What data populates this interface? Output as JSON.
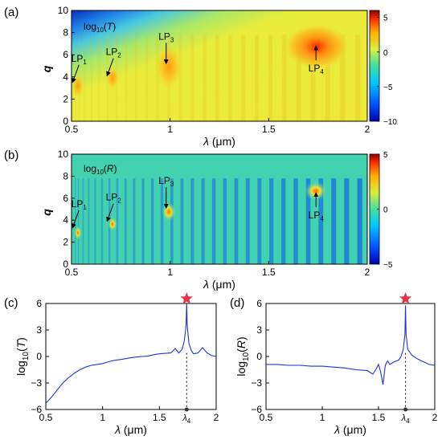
{
  "panels": {
    "a": {
      "tag": "(a)",
      "inset_label": "log",
      "inset_sub": "10",
      "inset_var": "T"
    },
    "b": {
      "tag": "(b)",
      "inset_label": "log",
      "inset_sub": "10",
      "inset_var": "R"
    },
    "c": {
      "tag": "(c)"
    },
    "d": {
      "tag": "(d)"
    }
  },
  "chart_data": [
    {
      "id": "a",
      "type": "heatmap",
      "title": "log10(T)",
      "xlabel": "λ (μm)",
      "ylabel": "q",
      "xlim": [
        0.5,
        2.0
      ],
      "ylim": [
        0,
        10
      ],
      "xticks": [
        0.5,
        1,
        1.5,
        2
      ],
      "yticks": [
        0,
        2,
        4,
        6,
        8,
        10
      ],
      "colorbar": {
        "range": [
          -10,
          6
        ],
        "ticks": [
          5,
          0,
          -5,
          -10
        ]
      },
      "annotations": [
        {
          "base": "LP",
          "sub": "1",
          "x": 0.505,
          "y": 3.2
        },
        {
          "base": "LP",
          "sub": "2",
          "x": 0.68,
          "y": 3.8
        },
        {
          "base": "LP",
          "sub": "3",
          "x": 0.98,
          "y": 4.9
        },
        {
          "base": "LP",
          "sub": "4",
          "x": 1.74,
          "y": 7.1
        }
      ]
    },
    {
      "id": "b",
      "type": "heatmap",
      "title": "log10(R)",
      "xlabel": "λ (μm)",
      "ylabel": "q",
      "xlim": [
        0.5,
        2.0
      ],
      "ylim": [
        0,
        10
      ],
      "xticks": [
        0.5,
        1,
        1.5,
        2
      ],
      "yticks": [
        0,
        2,
        4,
        6,
        8,
        10
      ],
      "colorbar": {
        "range": [
          -5,
          5
        ],
        "ticks": [
          5,
          0,
          -5
        ]
      },
      "annotations": [
        {
          "base": "LP",
          "sub": "1",
          "x": 0.505,
          "y": 3.0
        },
        {
          "base": "LP",
          "sub": "2",
          "x": 0.68,
          "y": 3.6
        },
        {
          "base": "LP",
          "sub": "3",
          "x": 0.98,
          "y": 4.8
        },
        {
          "base": "LP",
          "sub": "4",
          "x": 1.74,
          "y": 6.8
        }
      ]
    },
    {
      "id": "c",
      "type": "line",
      "xlabel": "λ (μm)",
      "ylabel": "log10(T)",
      "xlim": [
        0.5,
        2.0
      ],
      "ylim": [
        -6,
        6
      ],
      "xticks": [
        0.5,
        1,
        1.5,
        2
      ],
      "yticks": [
        -6,
        -3,
        0,
        3,
        6
      ],
      "marker": {
        "x": 1.74,
        "label": "λ4"
      },
      "star": {
        "x": 1.74,
        "y": 6
      },
      "series": [
        {
          "color": "#1a35d8",
          "x": [
            0.5,
            0.55,
            0.6,
            0.65,
            0.7,
            0.75,
            0.8,
            0.85,
            0.9,
            0.95,
            1.0,
            1.05,
            1.1,
            1.15,
            1.2,
            1.25,
            1.3,
            1.35,
            1.4,
            1.45,
            1.5,
            1.55,
            1.6,
            1.64,
            1.67,
            1.7,
            1.72,
            1.735,
            1.74,
            1.745,
            1.76,
            1.78,
            1.8,
            1.84,
            1.88,
            1.92,
            1.96,
            2.0
          ],
          "y": [
            -5.3,
            -4.6,
            -3.8,
            -3.0,
            -2.4,
            -1.9,
            -1.5,
            -1.2,
            -1.0,
            -0.9,
            -0.8,
            -0.6,
            -0.45,
            -0.35,
            -0.25,
            -0.15,
            -0.05,
            0.0,
            0.05,
            0.2,
            0.3,
            0.35,
            0.4,
            0.9,
            0.4,
            0.8,
            1.8,
            3.5,
            6.0,
            3.5,
            1.5,
            0.7,
            0.3,
            0.4,
            1.0,
            0.4,
            0.1,
            0.0
          ]
        }
      ]
    },
    {
      "id": "d",
      "type": "line",
      "xlabel": "λ (μm)",
      "ylabel": "log10(R)",
      "xlim": [
        0.5,
        2.0
      ],
      "ylim": [
        -6,
        6
      ],
      "xticks": [
        0.5,
        1,
        1.5,
        2
      ],
      "yticks": [
        -6,
        -3,
        0,
        3,
        6
      ],
      "marker": {
        "x": 1.74,
        "label": "λ4"
      },
      "star": {
        "x": 1.74,
        "y": 5.8
      },
      "series": [
        {
          "color": "#1a35d8",
          "x": [
            0.5,
            0.6,
            0.7,
            0.8,
            0.9,
            1.0,
            1.1,
            1.2,
            1.3,
            1.4,
            1.45,
            1.48,
            1.5,
            1.52,
            1.54,
            1.56,
            1.58,
            1.6,
            1.64,
            1.68,
            1.7,
            1.72,
            1.735,
            1.74,
            1.745,
            1.76,
            1.8,
            1.85,
            1.9,
            1.95,
            2.0
          ],
          "y": [
            -0.9,
            -0.9,
            -1.0,
            -1.0,
            -1.1,
            -1.1,
            -1.2,
            -1.3,
            -1.5,
            -1.6,
            -2.0,
            -1.4,
            -0.9,
            -1.8,
            -3.2,
            -1.0,
            -0.5,
            -0.9,
            -0.6,
            -0.4,
            0.0,
            0.8,
            2.5,
            5.8,
            2.5,
            0.8,
            0.1,
            -0.3,
            -0.6,
            -0.9,
            -1.0
          ]
        }
      ]
    }
  ]
}
